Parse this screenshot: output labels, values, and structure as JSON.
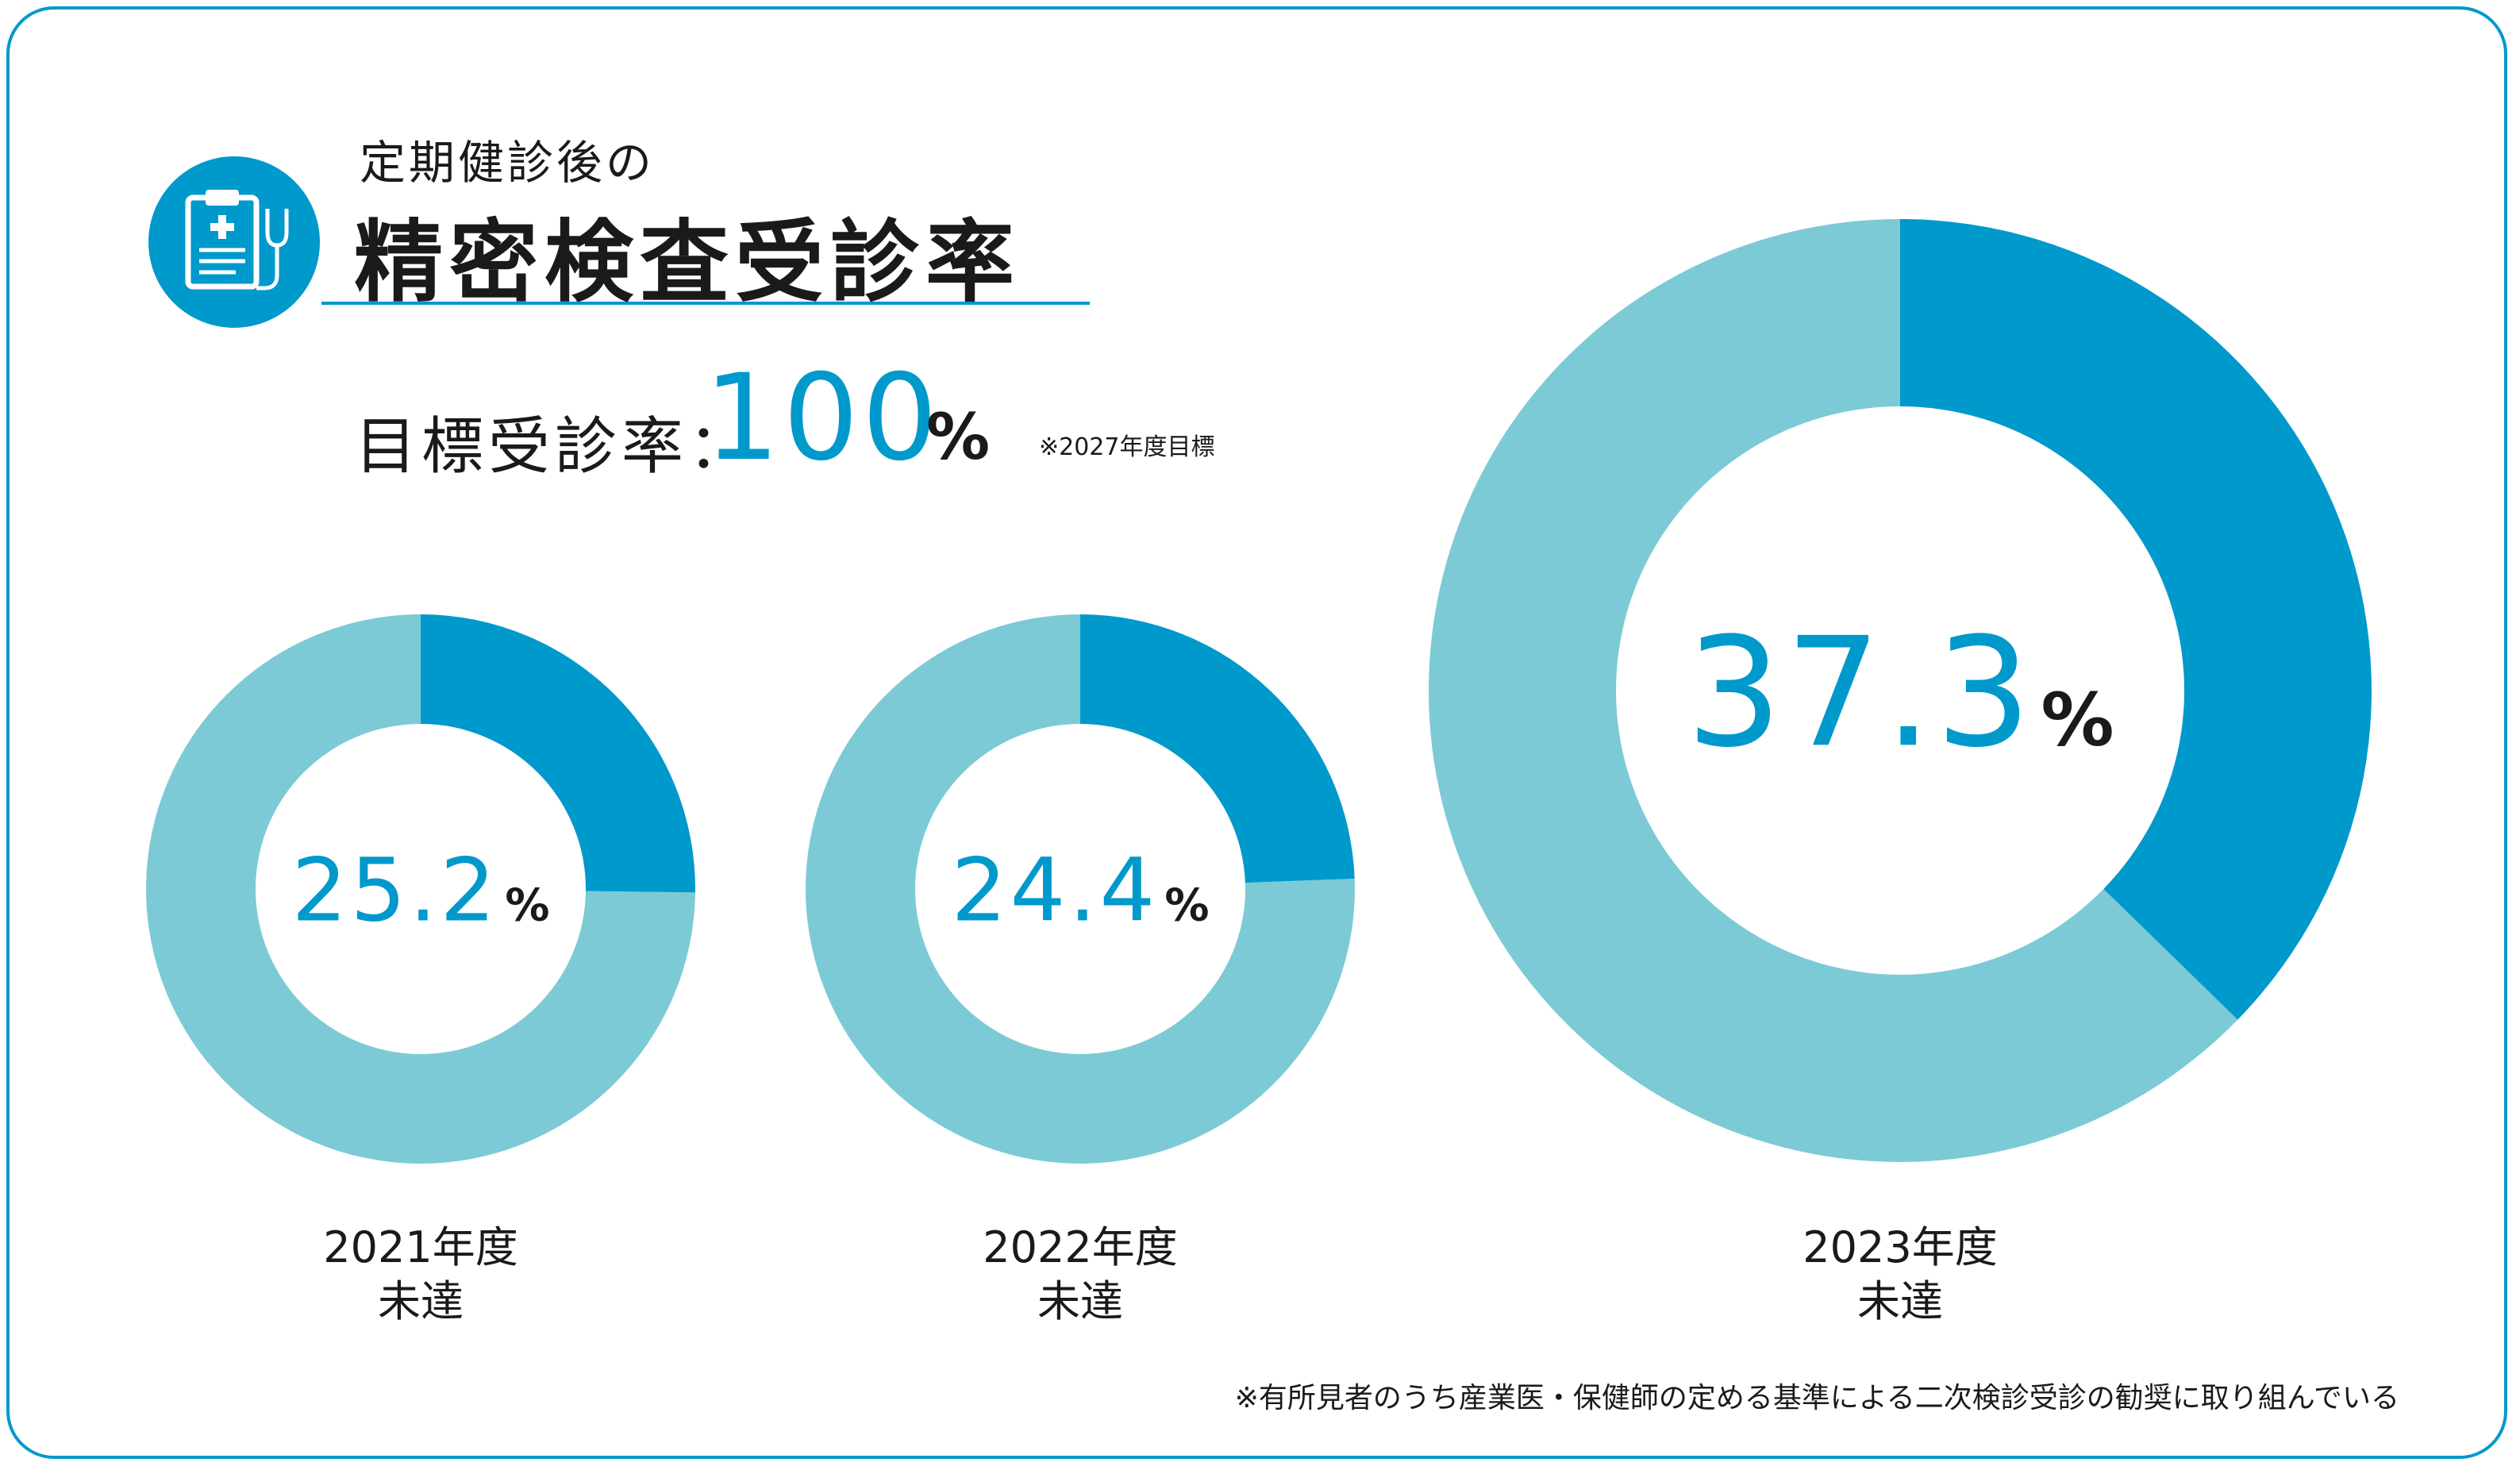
{
  "header": {
    "subtitle": "定期健診後の",
    "title": "精密検査受診率",
    "icon": "clipboard-stethoscope-icon"
  },
  "target": {
    "label": "目標受診率：",
    "value": "100",
    "unit": "%",
    "note": "※2027年度目標"
  },
  "colors": {
    "accent": "#0099cc",
    "remainder": "#7ccad6",
    "frame": "#0099cc"
  },
  "chart_data": [
    {
      "type": "pie",
      "category": "2021年度",
      "status": "未達",
      "value": 25.2,
      "value_label": "25.2",
      "unit": "%"
    },
    {
      "type": "pie",
      "category": "2022年度",
      "status": "未達",
      "value": 24.4,
      "value_label": "24.4",
      "unit": "%"
    },
    {
      "type": "pie",
      "category": "2023年度",
      "status": "未達",
      "value": 37.3,
      "value_label": "37.3",
      "unit": "%"
    }
  ],
  "footnote": "※有所見者のうち産業医・保健師の定める基準による二次検診受診の勧奨に取り組んでいる"
}
